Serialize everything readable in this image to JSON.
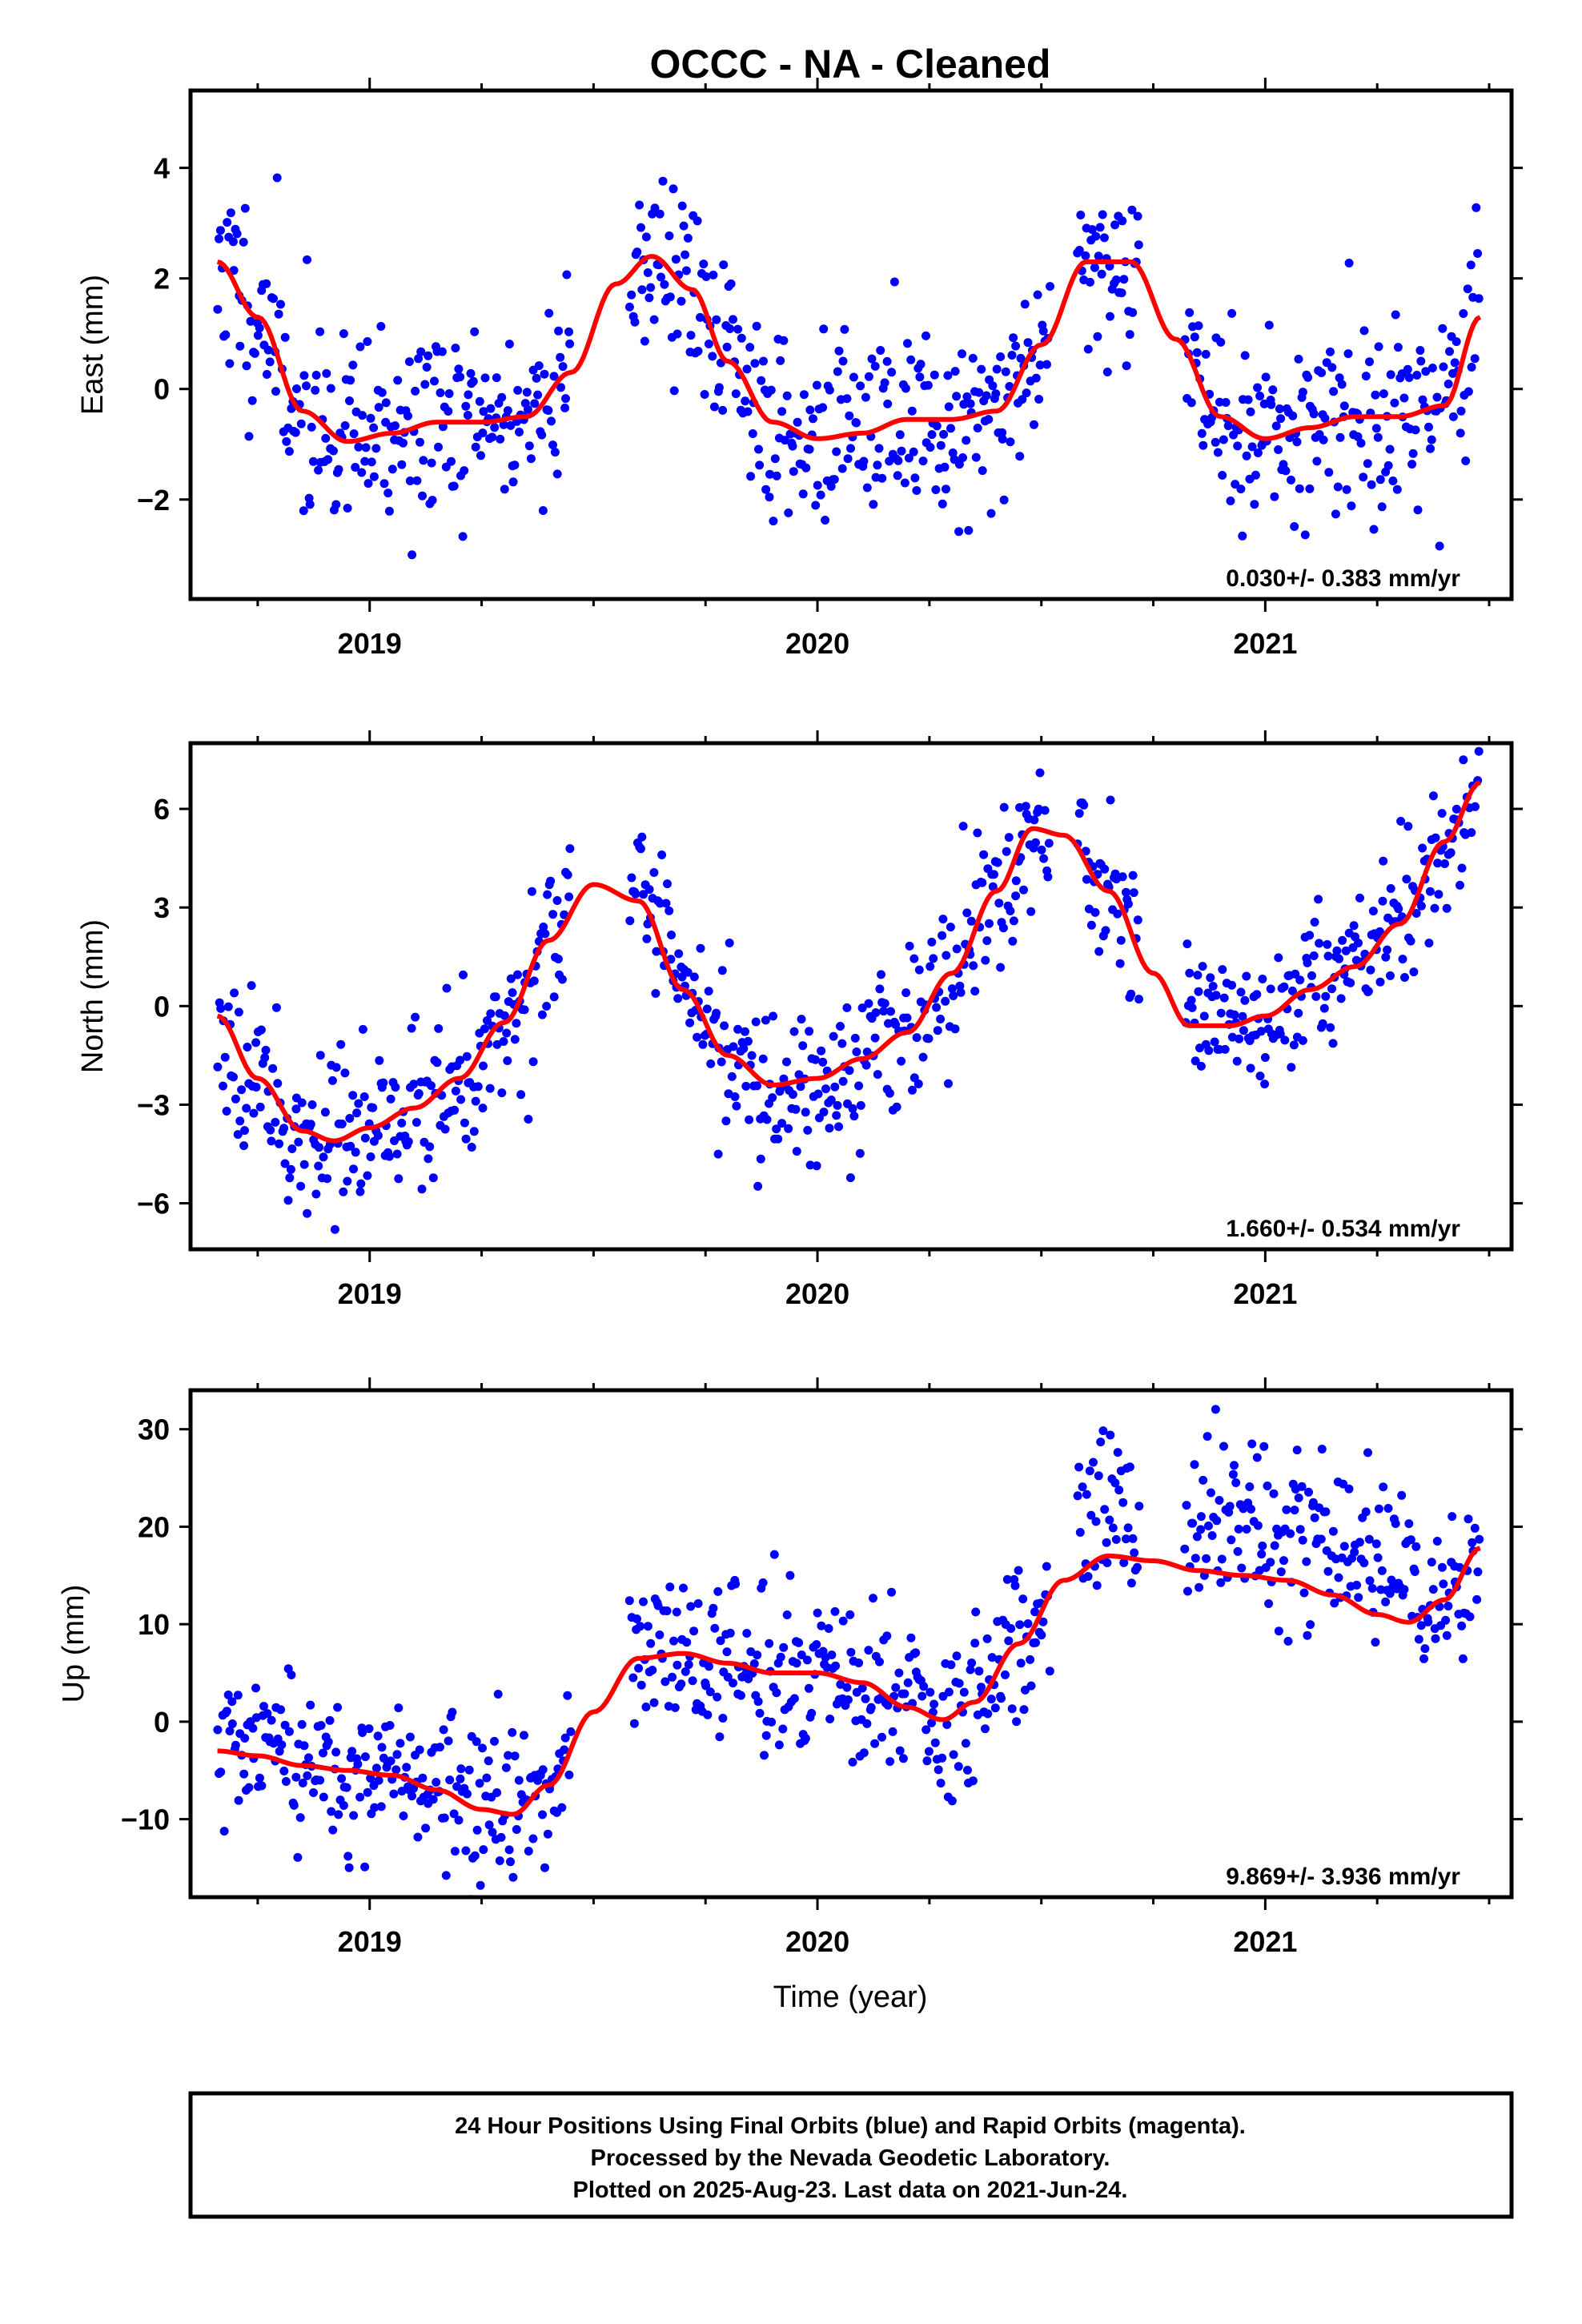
{
  "title": "OCCC  - NA - Cleaned",
  "xlabel": "Time (year)",
  "colors": {
    "final_orbits": "#0000ff",
    "rapid_orbits": "#ff00ff",
    "model": "#ff0000",
    "frame": "#000000"
  },
  "footer": {
    "line1": "24 Hour Positions Using Final Orbits (blue) and Rapid Orbits (magenta).",
    "line2": "Processed by the Nevada Geodetic Laboratory.",
    "line3": "Plotted on 2025-Aug-23. Last data on 2021-Jun-24."
  },
  "chart_data": [
    {
      "type": "scatter",
      "component": "east",
      "ylabel": "East (mm)",
      "xlim": [
        2018.6,
        2021.55
      ],
      "ylim": [
        -3.8,
        5.4
      ],
      "xticks": [
        2019,
        2020,
        2021
      ],
      "xtick_labels": [
        "2019",
        "2020",
        "2021"
      ],
      "yticks": [
        -2,
        0,
        2,
        4
      ],
      "ytick_labels": [
        "−2",
        "0",
        "2",
        "4"
      ],
      "rate": "0.030+/- 0.383 mm/yr",
      "model_curve": {
        "x": [
          2018.66,
          2018.75,
          2018.85,
          2018.95,
          2019.05,
          2019.15,
          2019.25,
          2019.35,
          2019.45,
          2019.55,
          2019.63,
          2019.72,
          2019.8,
          2019.9,
          2020.0,
          2020.1,
          2020.2,
          2020.3,
          2020.4,
          2020.5,
          2020.6,
          2020.7,
          2020.8,
          2020.9,
          2021.0,
          2021.1,
          2021.2,
          2021.3,
          2021.4,
          2021.48
        ],
        "y": [
          2.3,
          1.3,
          -0.4,
          -0.95,
          -0.8,
          -0.6,
          -0.6,
          -0.5,
          0.3,
          1.9,
          2.4,
          1.8,
          0.5,
          -0.6,
          -0.9,
          -0.8,
          -0.55,
          -0.55,
          -0.4,
          0.8,
          2.3,
          2.3,
          0.9,
          -0.5,
          -0.9,
          -0.7,
          -0.5,
          -0.5,
          -0.3,
          1.3
        ]
      },
      "scatter": {
        "segments": [
          [
            2018.66,
            2019.45
          ],
          [
            2019.58,
            2020.52
          ],
          [
            2020.58,
            2020.72
          ],
          [
            2020.82,
            2021.48
          ]
        ],
        "spread": 0.9,
        "seed": 11,
        "points_per_year": 300
      }
    },
    {
      "type": "scatter",
      "component": "north",
      "ylabel": "North (mm)",
      "xlim": [
        2018.6,
        2021.55
      ],
      "ylim": [
        -7.4,
        8.0
      ],
      "xticks": [
        2019,
        2020,
        2021
      ],
      "xtick_labels": [
        "2019",
        "2020",
        "2021"
      ],
      "yticks": [
        -6,
        -3,
        0,
        3,
        6
      ],
      "ytick_labels": [
        "−6",
        "−3",
        "0",
        "3",
        "6"
      ],
      "rate": "1.660+/- 0.534 mm/yr",
      "model_curve": {
        "x": [
          2018.66,
          2018.75,
          2018.85,
          2018.92,
          2019.0,
          2019.1,
          2019.2,
          2019.3,
          2019.4,
          2019.5,
          2019.6,
          2019.7,
          2019.8,
          2019.9,
          2020.0,
          2020.1,
          2020.2,
          2020.3,
          2020.4,
          2020.48,
          2020.55,
          2020.65,
          2020.75,
          2020.83,
          2020.92,
          2021.0,
          2021.1,
          2021.2,
          2021.3,
          2021.4,
          2021.48
        ],
        "y": [
          -0.3,
          -2.2,
          -3.8,
          -4.1,
          -3.7,
          -3.1,
          -2.2,
          -0.5,
          2.0,
          3.7,
          3.2,
          0.5,
          -1.5,
          -2.4,
          -2.2,
          -1.6,
          -0.8,
          1.0,
          3.5,
          5.4,
          5.2,
          3.5,
          1.0,
          -0.6,
          -0.6,
          -0.3,
          0.5,
          1.2,
          2.5,
          5.0,
          6.8
        ]
      },
      "scatter": {
        "segments": [
          [
            2018.66,
            2019.45
          ],
          [
            2019.58,
            2020.52
          ],
          [
            2020.58,
            2020.72
          ],
          [
            2020.82,
            2021.48
          ]
        ],
        "spread": 1.2,
        "seed": 23,
        "points_per_year": 300
      }
    },
    {
      "type": "scatter",
      "component": "up",
      "ylabel": "Up (mm)",
      "xlim": [
        2018.6,
        2021.55
      ],
      "ylim": [
        -18,
        34
      ],
      "xticks": [
        2019,
        2020,
        2021
      ],
      "xtick_labels": [
        "2019",
        "2020",
        "2021"
      ],
      "yticks": [
        -10,
        0,
        10,
        20,
        30
      ],
      "ytick_labels": [
        "−10",
        "0",
        "10",
        "20",
        "30"
      ],
      "rate": "9.869+/- 3.936 mm/yr",
      "model_curve": {
        "x": [
          2018.66,
          2018.75,
          2018.85,
          2018.95,
          2019.05,
          2019.15,
          2019.25,
          2019.32,
          2019.4,
          2019.5,
          2019.6,
          2019.7,
          2019.8,
          2019.9,
          2020.0,
          2020.1,
          2020.2,
          2020.28,
          2020.35,
          2020.45,
          2020.55,
          2020.65,
          2020.75,
          2020.85,
          2020.95,
          2021.05,
          2021.15,
          2021.25,
          2021.32,
          2021.4,
          2021.48
        ],
        "y": [
          -3.0,
          -3.5,
          -4.5,
          -5.0,
          -5.5,
          -7.0,
          -9.0,
          -9.5,
          -6.5,
          1.0,
          6.5,
          7.0,
          6.0,
          5.0,
          5.0,
          4.0,
          1.5,
          0.2,
          2.0,
          8.0,
          14.5,
          17.0,
          16.5,
          15.5,
          15.0,
          14.5,
          13.0,
          11.0,
          10.2,
          12.5,
          17.8
        ]
      },
      "scatter": {
        "segments": [
          [
            2018.66,
            2019.45
          ],
          [
            2019.58,
            2020.52
          ],
          [
            2020.58,
            2020.72
          ],
          [
            2020.82,
            2021.48
          ]
        ],
        "spread": 4.0,
        "seed": 37,
        "points_per_year": 300
      }
    }
  ]
}
